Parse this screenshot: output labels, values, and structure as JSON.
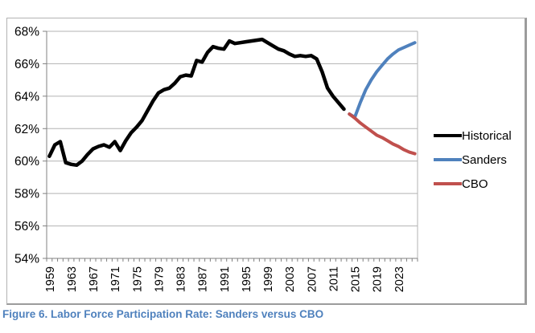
{
  "figure": {
    "caption": "Figure 6. Labor Force Participation Rate: Sanders versus CBO",
    "caption_color": "#4f81bd"
  },
  "chart_data": {
    "type": "line",
    "title": "",
    "xlabel": "",
    "ylabel": "",
    "ylim": [
      54,
      68
    ],
    "ytick_step": 2,
    "ytick_labels": [
      "54%",
      "56%",
      "58%",
      "60%",
      "62%",
      "64%",
      "66%",
      "68%"
    ],
    "x_start": 1959,
    "x_end": 2026,
    "xtick_years": [
      1959,
      1963,
      1967,
      1971,
      1975,
      1979,
      1983,
      1987,
      1991,
      1995,
      1999,
      2003,
      2007,
      2011,
      2015,
      2019,
      2023
    ],
    "grid": true,
    "legend_position": "right",
    "grid_color": "#b3b3b3",
    "axis_color": "#808080",
    "series": [
      {
        "name": "Historical",
        "color": "#000000",
        "line_width": 4.5,
        "start_year": 1959,
        "values": [
          60.3,
          61.0,
          61.2,
          59.9,
          59.8,
          59.75,
          60.0,
          60.4,
          60.75,
          60.9,
          61.0,
          60.85,
          61.2,
          60.65,
          61.25,
          61.75,
          62.1,
          62.5,
          63.1,
          63.7,
          64.2,
          64.4,
          64.5,
          64.8,
          65.2,
          65.3,
          65.25,
          66.2,
          66.1,
          66.7,
          67.05,
          66.95,
          66.9,
          67.4,
          67.25,
          67.3,
          67.35,
          67.4,
          67.45,
          67.5,
          67.3,
          67.1,
          66.9,
          66.8,
          66.6,
          66.45,
          66.5,
          66.45,
          66.5,
          66.3,
          65.5,
          64.5,
          64.0,
          63.6,
          63.2
        ]
      },
      {
        "name": "Sanders",
        "color": "#4f81bd",
        "line_width": 4,
        "start_year": 2014,
        "values": [
          62.9,
          62.7,
          63.6,
          64.4,
          65.0,
          65.5,
          65.9,
          66.3,
          66.6,
          66.85,
          67.0,
          67.15,
          67.3
        ]
      },
      {
        "name": "CBO",
        "color": "#c0504d",
        "line_width": 4,
        "start_year": 2014,
        "values": [
          62.9,
          62.65,
          62.35,
          62.1,
          61.85,
          61.6,
          61.45,
          61.25,
          61.05,
          60.9,
          60.7,
          60.55,
          60.45
        ]
      }
    ]
  }
}
